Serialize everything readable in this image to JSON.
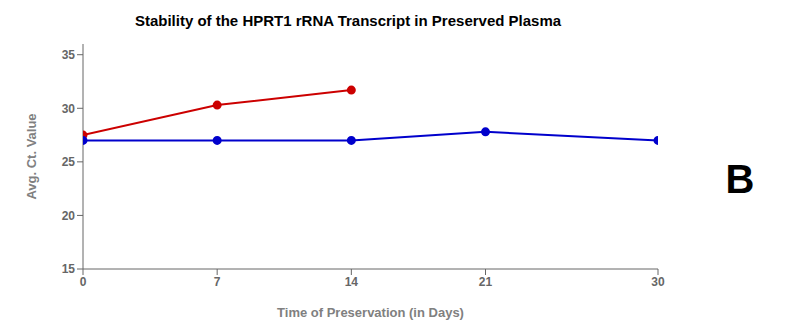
{
  "chart_data": {
    "type": "line",
    "title": "Stability of the HPRT1 rRNA Transcript in Preserved Plasma",
    "xlabel": "Time of Preservation (in Days)",
    "ylabel": "Avg. Ct. Value",
    "annotation": "B",
    "series": [
      {
        "color": "#cc0000",
        "marker": "circle",
        "x": [
          0,
          7,
          14
        ],
        "values": [
          27.5,
          30.3,
          31.7
        ]
      },
      {
        "color": "#0000cc",
        "marker": "circle",
        "x": [
          0,
          7,
          14,
          21,
          30
        ],
        "values": [
          27.0,
          27.0,
          27.0,
          27.8,
          27.0
        ]
      }
    ],
    "xlim": [
      0,
      30
    ],
    "xticks": [
      0,
      7,
      14,
      21,
      30
    ],
    "ylim": [
      15,
      36
    ],
    "yticks": [
      15,
      20,
      25,
      30,
      35
    ],
    "grid": false
  }
}
